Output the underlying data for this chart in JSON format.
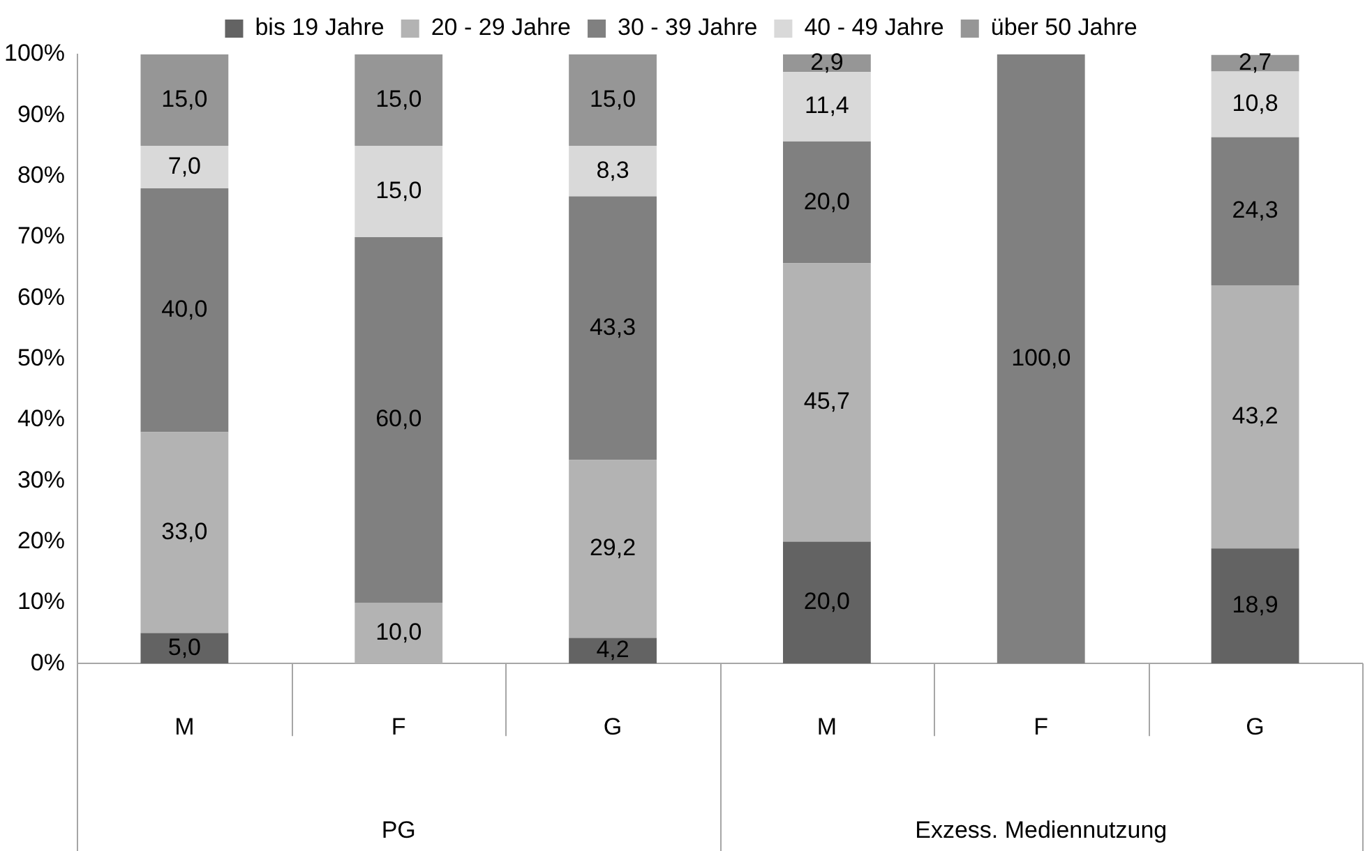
{
  "chart_data": {
    "type": "bar",
    "stacked": true,
    "categories": [
      "M",
      "F",
      "G",
      "M",
      "F",
      "G"
    ],
    "series": [
      {
        "name": "bis 19 Jahre",
        "color": "#636363",
        "values": [
          5.0,
          null,
          4.2,
          20.0,
          null,
          18.9
        ],
        "value_labels": [
          "5,0",
          null,
          "4,2",
          "20,0",
          null,
          "18,9"
        ]
      },
      {
        "name": "20 - 29 Jahre",
        "color": "#b3b3b3",
        "values": [
          33.0,
          10.0,
          29.2,
          45.7,
          null,
          43.2
        ],
        "value_labels": [
          "33,0",
          "10,0",
          "29,2",
          "45,7",
          null,
          "43,2"
        ]
      },
      {
        "name": "30 - 39 Jahre",
        "color": "#808080",
        "values": [
          40.0,
          60.0,
          43.3,
          20.0,
          100.0,
          24.3
        ],
        "value_labels": [
          "40,0",
          "60,0",
          "43,3",
          "20,0",
          "100,0",
          "24,3"
        ]
      },
      {
        "name": "40 - 49 Jahre",
        "color": "#d9d9d9",
        "values": [
          7.0,
          15.0,
          8.3,
          11.4,
          null,
          10.8
        ],
        "value_labels": [
          "7,0",
          "15,0",
          "8,3",
          "11,4",
          null,
          "10,8"
        ]
      },
      {
        "name": "über 50 Jahre",
        "color": "#969696",
        "values": [
          15.0,
          15.0,
          15.0,
          2.9,
          null,
          2.7
        ],
        "value_labels": [
          "15,0",
          "15,0",
          "15,0",
          "2,9",
          null,
          "2,7"
        ]
      }
    ],
    "ylim": [
      0,
      100
    ],
    "yticks": [
      {
        "value": 0,
        "label": "0%"
      },
      {
        "value": 10,
        "label": "10%"
      },
      {
        "value": 20,
        "label": "20%"
      },
      {
        "value": 30,
        "label": "30%"
      },
      {
        "value": 40,
        "label": "40%"
      },
      {
        "value": 50,
        "label": "50%"
      },
      {
        "value": 60,
        "label": "60%"
      },
      {
        "value": 70,
        "label": "70%"
      },
      {
        "value": 80,
        "label": "80%"
      },
      {
        "value": 90,
        "label": "90%"
      },
      {
        "value": 100,
        "label": "100%"
      }
    ],
    "annotations": [
      "PG",
      "Exzess. Mediennutzung"
    ],
    "grid": false,
    "legend": "top"
  }
}
